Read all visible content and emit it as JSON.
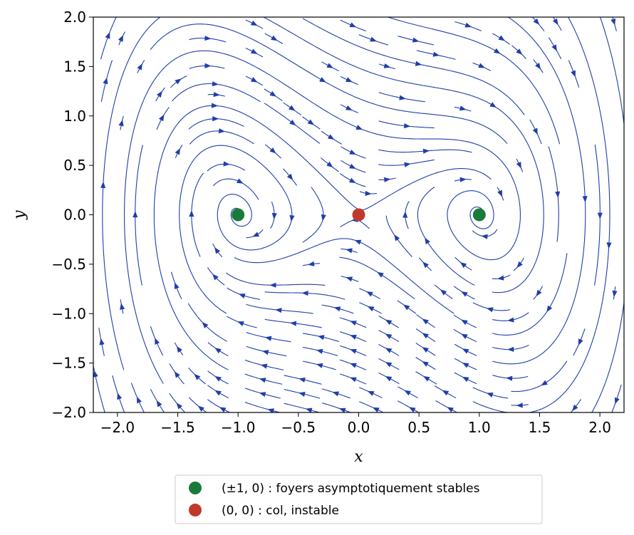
{
  "chart_data": {
    "type": "streamplot",
    "xlabel": "x",
    "ylabel": "y",
    "xlim": [
      -2.2,
      2.2
    ],
    "ylim": [
      -2.0,
      2.0
    ],
    "x_ticks": [
      -2.0,
      -1.5,
      -1.0,
      -0.5,
      0.0,
      0.5,
      1.0,
      1.5,
      2.0
    ],
    "x_tick_labels": [
      "−2.0",
      "−1.5",
      "−1.0",
      "−0.5",
      "0.0",
      "0.5",
      "1.0",
      "1.5",
      "2.0"
    ],
    "y_ticks": [
      2.0,
      1.5,
      1.0,
      0.5,
      0.0,
      -0.5,
      -1.0,
      -1.5,
      -2.0
    ],
    "y_tick_labels": [
      "2.0",
      "1.5",
      "1.0",
      "0.5",
      "0.0",
      "−0.5",
      "−1.0",
      "−1.5",
      "−2.0"
    ],
    "stream_color": "#1f3fa8",
    "grid": false,
    "legend_position": "below",
    "equilibria": [
      {
        "x": -1.0,
        "y": 0.0,
        "color": "#1a7a3a",
        "group": "stable"
      },
      {
        "x": 1.0,
        "y": 0.0,
        "color": "#1a7a3a",
        "group": "stable"
      },
      {
        "x": 0.0,
        "y": 0.0,
        "color": "#c0392b",
        "group": "saddle"
      }
    ],
    "legend": [
      {
        "label": "(±1, 0) : foyers asymptotiquement stables",
        "color": "#1a7a3a"
      },
      {
        "label": "(0, 0) : col, instable",
        "color": "#c0392b"
      }
    ]
  }
}
